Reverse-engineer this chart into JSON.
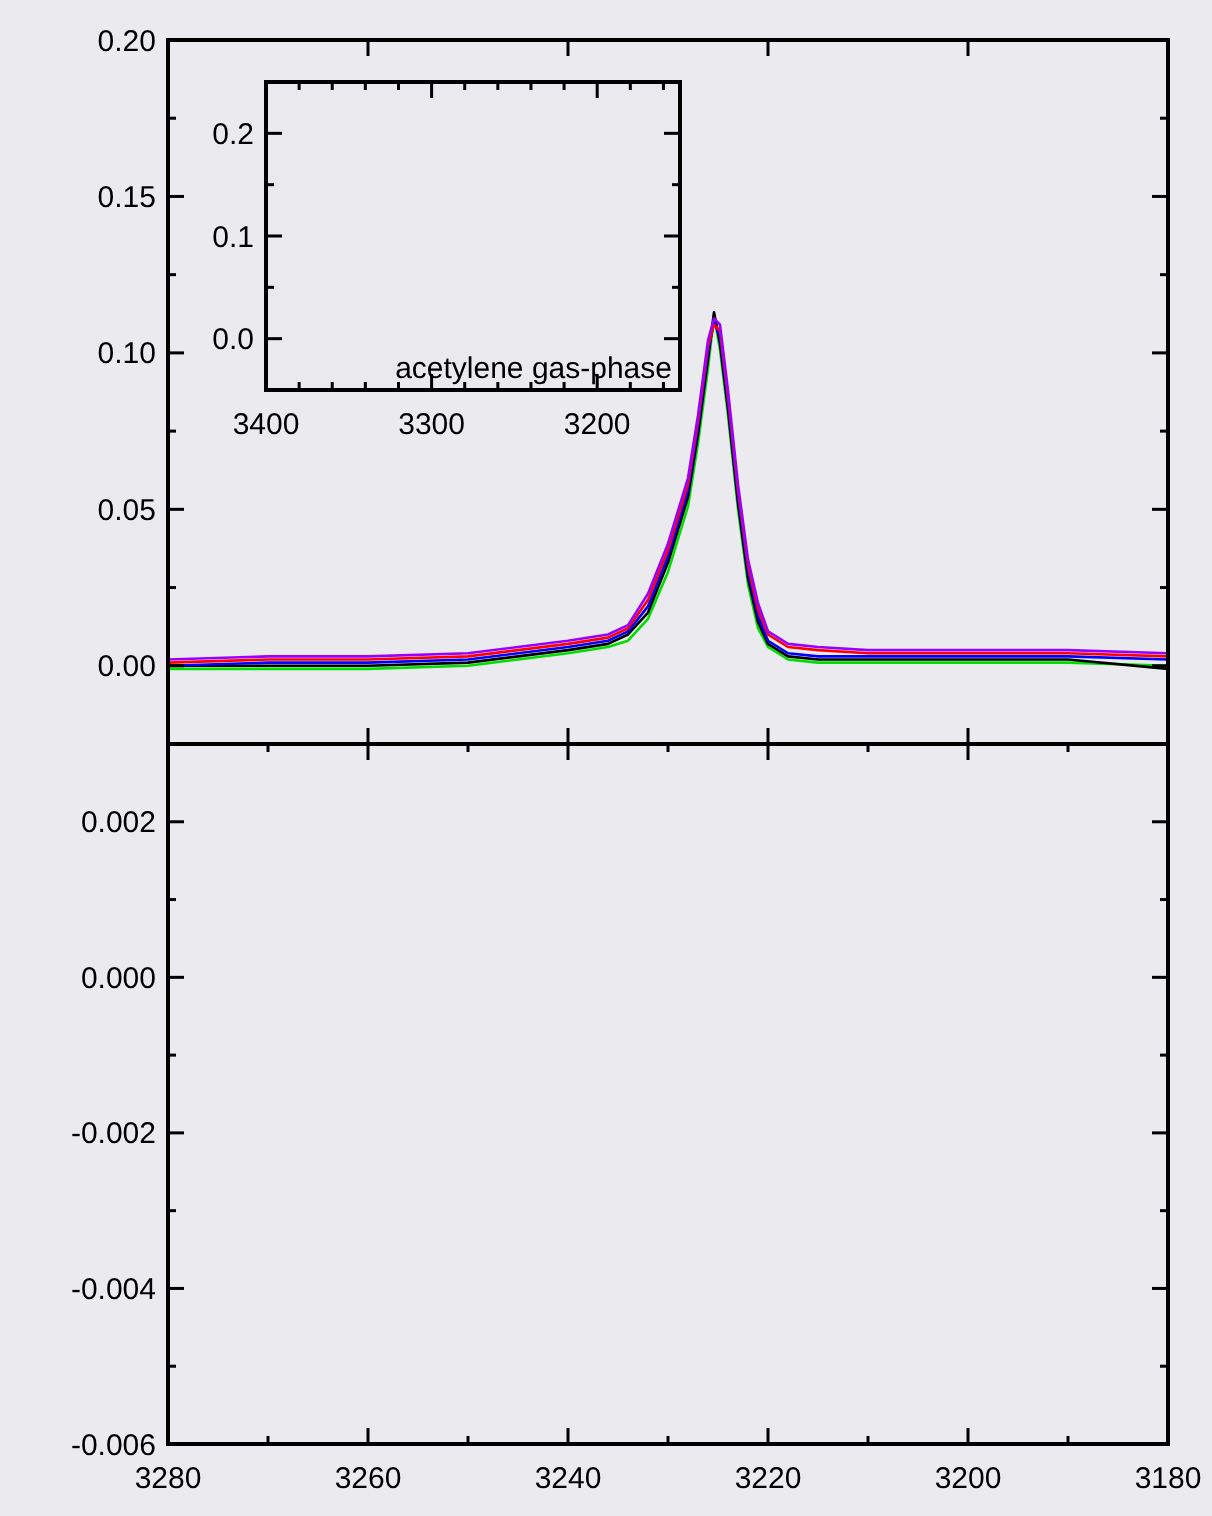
{
  "chart_data": [
    {
      "type": "line",
      "tick_labels": "y",
      "x": [
        3280,
        3270,
        3260,
        3250,
        3245,
        3240,
        3236,
        3234,
        3232,
        3230,
        3228,
        3227,
        3226,
        3225.4,
        3224.8,
        3224,
        3223,
        3222,
        3221,
        3220,
        3218,
        3215,
        3210,
        3200,
        3190,
        3180
      ],
      "xlim": [
        3280,
        3180
      ],
      "ylim": [
        -0.025,
        0.2
      ],
      "xticks": [
        3280,
        3260,
        3240,
        3220,
        3200,
        3180
      ],
      "yticks": [
        {
          "value": 0,
          "label": "0.00"
        },
        {
          "value": 0.05,
          "label": "0.05"
        },
        {
          "value": 0.1,
          "label": "0.10"
        },
        {
          "value": 0.15,
          "label": "0.15"
        },
        {
          "value": 0.2,
          "label": "0.20"
        },
        {
          "value": -0.025,
          "label": null
        },
        {
          "value": 0.025,
          "label": null
        },
        {
          "value": 0.075,
          "label": null
        },
        {
          "value": 0.125,
          "label": null
        },
        {
          "value": 0.175,
          "label": null
        }
      ],
      "series": [
        {
          "color": "#00dd00",
          "values": [
            -0.001,
            -0.001,
            -0.001,
            0.0,
            0.002,
            0.004,
            0.006,
            0.008,
            0.015,
            0.03,
            0.051,
            0.071,
            0.095,
            0.112,
            0.101,
            0.08,
            0.05,
            0.026,
            0.012,
            0.006,
            0.002,
            0.001,
            0.001,
            0.001,
            0.001,
            0.0
          ]
        },
        {
          "color": "#000000",
          "values": [
            0.0,
            0.0,
            0.0,
            0.001,
            0.003,
            0.005,
            0.007,
            0.01,
            0.017,
            0.033,
            0.054,
            0.074,
            0.098,
            0.113,
            0.103,
            0.082,
            0.052,
            0.028,
            0.014,
            0.007,
            0.003,
            0.002,
            0.002,
            0.002,
            0.002,
            -0.001
          ]
        },
        {
          "color": "#0000ff",
          "values": [
            0.0,
            0.001,
            0.001,
            0.002,
            0.004,
            0.006,
            0.008,
            0.011,
            0.019,
            0.035,
            0.056,
            0.076,
            0.1,
            0.11,
            0.105,
            0.084,
            0.054,
            0.03,
            0.016,
            0.008,
            0.004,
            0.003,
            0.003,
            0.003,
            0.003,
            0.002
          ]
        },
        {
          "color": "#ff0000",
          "values": [
            0.001,
            0.002,
            0.002,
            0.003,
            0.005,
            0.007,
            0.009,
            0.012,
            0.021,
            0.037,
            0.058,
            0.078,
            0.102,
            0.109,
            0.107,
            0.086,
            0.056,
            0.032,
            0.018,
            0.01,
            0.006,
            0.005,
            0.004,
            0.004,
            0.004,
            0.003
          ]
        },
        {
          "color": "#9900ff",
          "values": [
            0.002,
            0.003,
            0.003,
            0.004,
            0.006,
            0.008,
            0.01,
            0.013,
            0.023,
            0.039,
            0.06,
            0.08,
            0.104,
            0.111,
            0.109,
            0.088,
            0.058,
            0.034,
            0.02,
            0.011,
            0.007,
            0.006,
            0.005,
            0.005,
            0.005,
            0.004
          ]
        }
      ]
    },
    {
      "type": "line",
      "xlim": [
        3400,
        3150
      ],
      "ylim": [
        -0.05,
        0.25
      ],
      "xticks": [
        3400,
        3300,
        3200,
        {
          "value": 3380,
          "label": null
        },
        {
          "value": 3360,
          "label": null
        },
        {
          "value": 3340,
          "label": null
        },
        {
          "value": 3320,
          "label": null
        },
        {
          "value": 3280,
          "label": null
        },
        {
          "value": 3260,
          "label": null
        },
        {
          "value": 3240,
          "label": null
        },
        {
          "value": 3220,
          "label": null
        },
        {
          "value": 3180,
          "label": null
        },
        {
          "value": 3160,
          "label": null
        }
      ],
      "yticks": [
        {
          "value": 0,
          "label": "0.0"
        },
        {
          "value": 0.1,
          "label": "0.1"
        },
        {
          "value": 0.2,
          "label": "0.2"
        },
        {
          "value": 0.05,
          "label": null
        },
        {
          "value": 0.15,
          "label": null
        }
      ],
      "annotations": [
        "acetylene gas-phase"
      ]
    },
    {
      "type": "line",
      "xlim": [
        3280,
        3180
      ],
      "ylim": [
        -0.006,
        0.003
      ],
      "xticks": [
        3280,
        3260,
        3240,
        3220,
        3200,
        3180,
        {
          "value": 3270,
          "label": null
        },
        {
          "value": 3250,
          "label": null
        },
        {
          "value": 3230,
          "label": null
        },
        {
          "value": 3210,
          "label": null
        },
        {
          "value": 3190,
          "label": null
        }
      ],
      "yticks": [
        {
          "value": 0.002,
          "label": "0.002"
        },
        {
          "value": 0,
          "label": "0.000"
        },
        {
          "value": -0.002,
          "label": "-0.002"
        },
        {
          "value": -0.004,
          "label": "-0.004"
        },
        {
          "value": -0.006,
          "label": "-0.006"
        },
        {
          "value": 0.003,
          "label": null
        },
        {
          "value": 0.001,
          "label": null
        },
        {
          "value": -0.001,
          "label": null
        },
        {
          "value": -0.003,
          "label": null
        },
        {
          "value": -0.005,
          "label": null
        }
      ]
    }
  ]
}
